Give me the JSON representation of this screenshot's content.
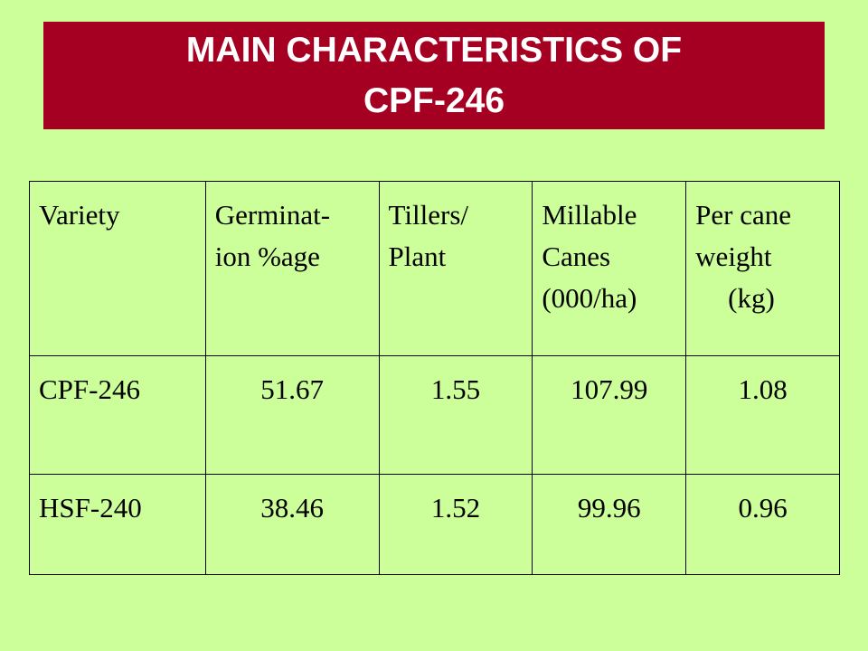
{
  "header": {
    "title_lines": [
      "MAIN CHARACTERISTICS OF",
      "CPF-246"
    ]
  },
  "table": {
    "columns": [
      [
        "Variety"
      ],
      [
        "Germinat-",
        "ion %age"
      ],
      [
        "Tillers/",
        "Plant"
      ],
      [
        "Millable",
        "Canes",
        "(000/ha)"
      ],
      [
        "Per cane",
        "weight",
        "(kg)"
      ]
    ],
    "rows": [
      [
        "CPF-246",
        51.67,
        1.55,
        107.99,
        1.08
      ],
      [
        "HSF-240",
        38.46,
        1.52,
        99.96,
        0.96
      ]
    ]
  }
}
